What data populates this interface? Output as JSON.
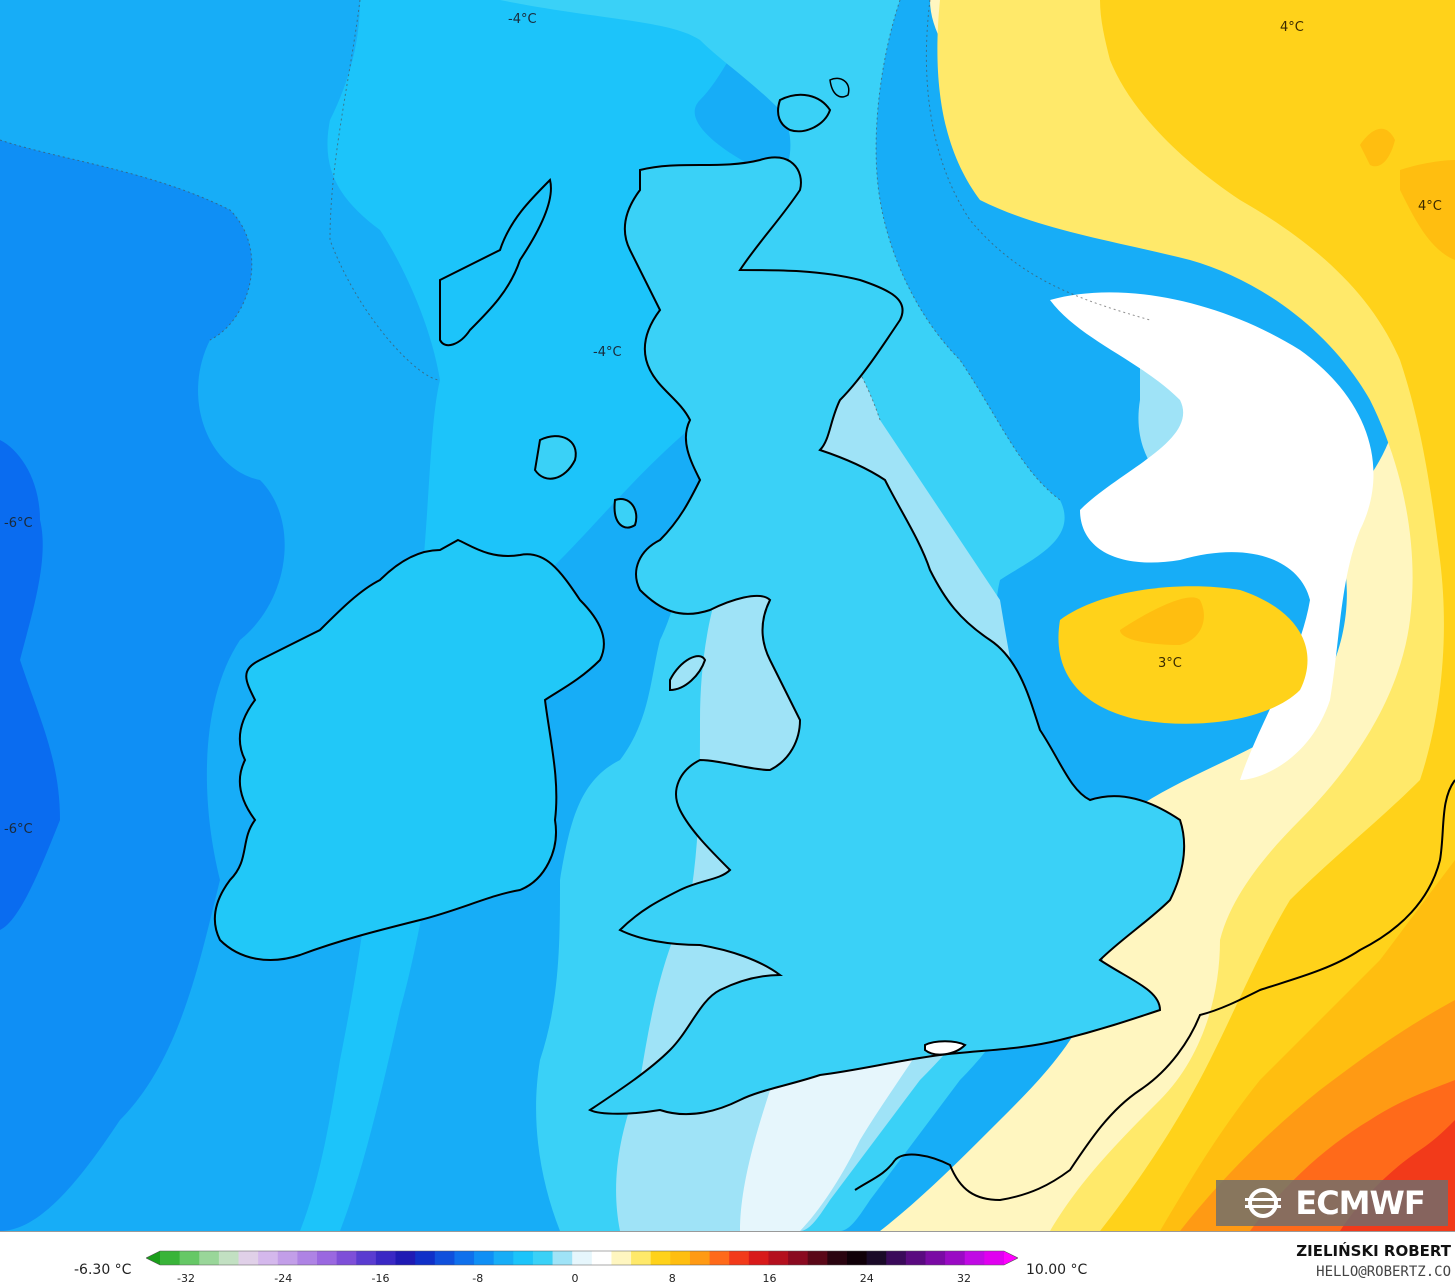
{
  "map": {
    "colors": {
      "sea_deep": "#0a6cf0",
      "sea_mid": "#0f8ff5",
      "sea_blue": "#17adf7",
      "sea_light": "#1cc4fa",
      "cyan": "#3ad1f7",
      "pale_cyan": "#9fe3f7",
      "very_pale": "#e6f6fc",
      "white": "#ffffff",
      "pale_yellow": "#fff6c0",
      "light_yellow": "#ffe96a",
      "yellow": "#ffd21a",
      "gold": "#ffbe10",
      "orange": "#ff9a14",
      "deep_orange": "#ff6a1a",
      "red": "#f23a1a",
      "coast": "#000000",
      "border": "#6e6e6e"
    },
    "contour_labels": [
      {
        "id": "n4a",
        "text": "-4°C"
      },
      {
        "id": "n4b",
        "text": "-4°C"
      },
      {
        "id": "n6a",
        "text": "-6°C"
      },
      {
        "id": "n6b",
        "text": "-6°C"
      },
      {
        "id": "p4a",
        "text": "4°C"
      },
      {
        "id": "p4b",
        "text": "4°C"
      },
      {
        "id": "p3",
        "text": "3°C"
      }
    ],
    "logo": {
      "text": "ECMWF",
      "icon": "ecmwf-logo-icon"
    }
  },
  "scale": {
    "min_label": "-6.30 °C",
    "max_label": "10.00 °C",
    "ticks": [
      "-32",
      "-24",
      "-16",
      "-8",
      "0",
      "8",
      "16",
      "24",
      "32"
    ],
    "stops": [
      "#1a9e1a",
      "#39b439",
      "#66c866",
      "#99d699",
      "#c2e0c2",
      "#e0d0e8",
      "#d4b8ec",
      "#c29ee8",
      "#ae83e4",
      "#9a68e0",
      "#7e4fd8",
      "#5a3cd0",
      "#3a28c4",
      "#1f1ab4",
      "#1030c8",
      "#1050dc",
      "#0f70ec",
      "#0f8ff5",
      "#17adf7",
      "#1cc4fa",
      "#3ad1f7",
      "#9fe3f7",
      "#e6f6fc",
      "#ffffff",
      "#fff6c0",
      "#ffe96a",
      "#ffd21a",
      "#ffbe10",
      "#ff9a14",
      "#ff6a1a",
      "#f23a1a",
      "#d81a1a",
      "#b4101e",
      "#8a0a20",
      "#5a0818",
      "#2a0410",
      "#100008",
      "#1a0a28",
      "#3a0a5a",
      "#5a0a80",
      "#7a0aa4",
      "#9a0ac4",
      "#c00ae4",
      "#e000f0",
      "#ff00ff"
    ]
  },
  "credit": {
    "name": "ZIELIŃSKI ROBERT",
    "email": "HELLO@ROBERTZ.CO"
  }
}
